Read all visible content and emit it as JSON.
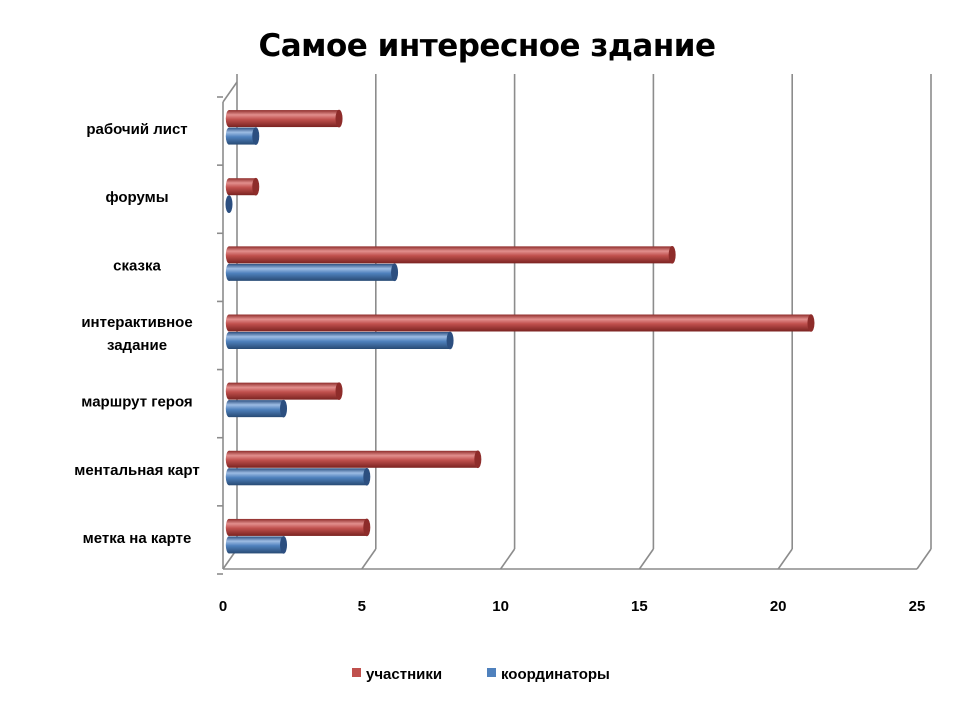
{
  "chart_data": {
    "type": "bar",
    "orientation": "horizontal",
    "style": "3d-cylinder",
    "title": "Самое интересное здание",
    "categories": [
      "рабочий лист",
      "форумы",
      "сказка",
      "интерактивное задание",
      "маршрут героя",
      "ментальная карт",
      "метка на карте"
    ],
    "category_lines": [
      [
        "рабочий лист"
      ],
      [
        "форумы"
      ],
      [
        "сказка"
      ],
      [
        "интерактивное",
        "задание"
      ],
      [
        "маршрут героя"
      ],
      [
        "ментальная карт"
      ],
      [
        "метка на карте"
      ]
    ],
    "series": [
      {
        "name": "участники",
        "color": "#c0504d",
        "values": [
          4,
          1,
          16,
          21,
          4,
          9,
          5
        ]
      },
      {
        "name": "координаторы",
        "color": "#4f81bd",
        "values": [
          1,
          0,
          6,
          8,
          2,
          5,
          2
        ]
      }
    ],
    "xlim": [
      0,
      25
    ],
    "xticks": [
      "0",
      "5",
      "10",
      "15",
      "20",
      "25"
    ],
    "grid": true,
    "legend_position": "bottom"
  }
}
